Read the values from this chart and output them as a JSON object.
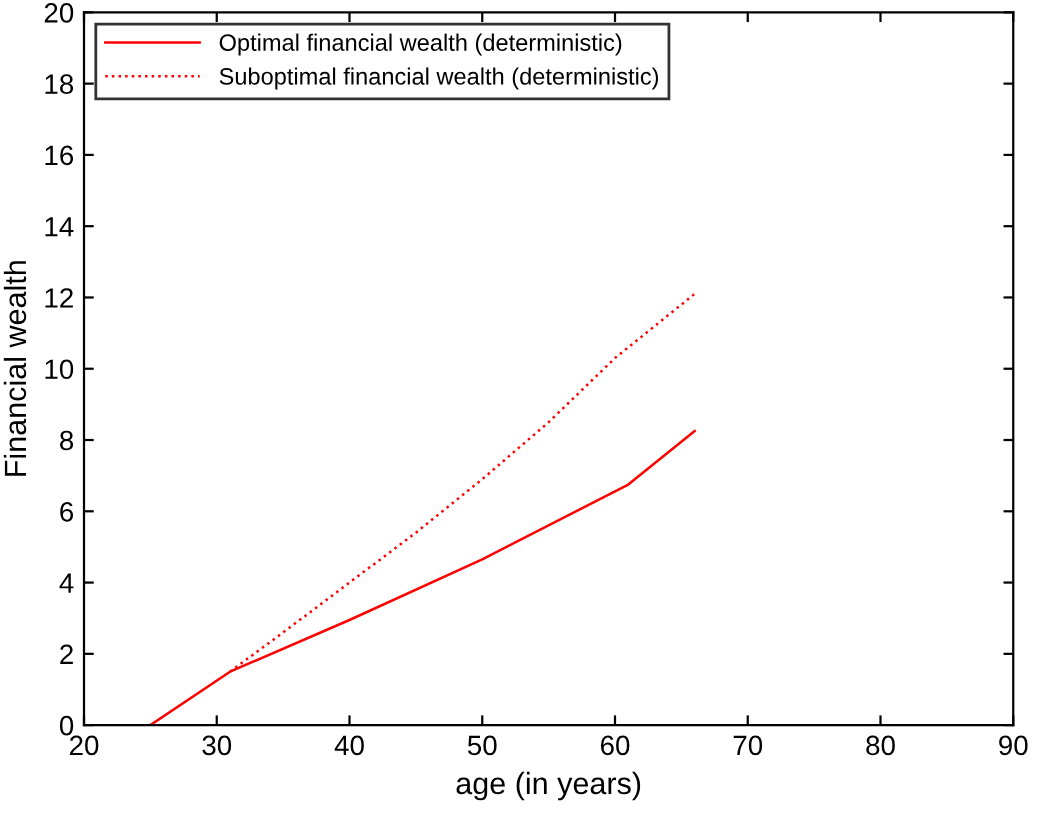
{
  "chart_data": {
    "type": "line",
    "xlabel": "age (in years)",
    "ylabel": "Financial wealth",
    "xlim": [
      20,
      90
    ],
    "xticks": [
      20,
      30,
      40,
      50,
      60,
      70,
      80,
      90
    ],
    "ylim": [
      0,
      20
    ],
    "yticks": [
      0,
      2,
      4,
      6,
      8,
      10,
      12,
      14,
      16,
      18,
      20
    ],
    "grid": false,
    "legend": "top left",
    "marker": "none",
    "series": [
      {
        "name": "Optimal financial wealth (deterministic)",
        "color": "#ff0000",
        "line_style": "solid",
        "x": [
          25,
          31,
          40,
          50,
          61,
          66
        ],
        "values": [
          0,
          1.5,
          2.95,
          4.65,
          6.75,
          8.25
        ]
      },
      {
        "name": "Suboptimal financial wealth (deterministic)",
        "color": "#ff0000",
        "line_style": "dotted",
        "x": [
          31,
          35,
          40,
          45,
          50,
          55,
          60,
          66
        ],
        "values": [
          1.5,
          2.6,
          4.0,
          5.4,
          6.9,
          8.5,
          10.3,
          12.1
        ]
      }
    ]
  }
}
